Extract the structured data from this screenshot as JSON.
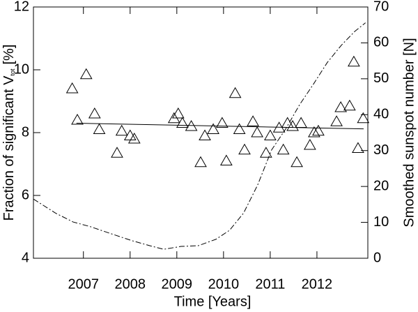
{
  "chart_data": {
    "type": "scatter",
    "xlabel": "Time [Years]",
    "ylabel": "Fraction of significant V",
    "ylabel_subscript": "tot",
    "ylabel_suffix": "[%]",
    "y2label": "Smoothed sunspot number [N]",
    "xlim": [
      2005.93,
      2013.09
    ],
    "xticks": [
      2007,
      2008,
      2009,
      2010,
      2011,
      2012
    ],
    "ylim": [
      4,
      12
    ],
    "yticks": [
      4,
      6,
      8,
      10,
      12
    ],
    "y2lim": [
      0,
      70
    ],
    "y2ticks": [
      0,
      10,
      20,
      30,
      40,
      50,
      60,
      70
    ],
    "series": [
      {
        "kind": "triangles",
        "color": "#000000",
        "x": [
          2006.76,
          2006.87,
          2007.06,
          2007.24,
          2007.34,
          2007.72,
          2007.82,
          2008.0,
          2008.09,
          2008.94,
          2009.03,
          2009.12,
          2009.31,
          2009.51,
          2009.6,
          2009.78,
          2009.97,
          2010.06,
          2010.25,
          2010.34,
          2010.45,
          2010.63,
          2010.72,
          2010.91,
          2011.0,
          2011.19,
          2011.28,
          2011.37,
          2011.48,
          2011.57,
          2011.66,
          2011.85,
          2011.94,
          2012.03,
          2012.42,
          2012.51,
          2012.7,
          2012.79,
          2012.88,
          2012.99
        ],
        "values": [
          9.4,
          8.4,
          9.85,
          8.6,
          8.1,
          7.35,
          8.05,
          7.9,
          7.8,
          8.45,
          8.6,
          8.3,
          8.2,
          7.05,
          7.9,
          8.1,
          8.3,
          7.1,
          9.25,
          8.1,
          7.45,
          8.35,
          8.0,
          7.35,
          7.9,
          8.15,
          7.45,
          8.3,
          8.2,
          7.05,
          8.3,
          7.6,
          8.0,
          8.05,
          8.35,
          8.8,
          8.85,
          10.25,
          7.5,
          8.45
        ]
      },
      {
        "kind": "fit",
        "color": "#000000",
        "x": [
          2006.85,
          2013.0
        ],
        "values": [
          8.3,
          8.12
        ]
      },
      {
        "kind": "sunspot",
        "color": "#000000",
        "axis": "y2",
        "x": [
          2005.93,
          2006.4,
          2006.78,
          2007.15,
          2007.6,
          2008.04,
          2008.42,
          2008.72,
          2009.09,
          2009.46,
          2009.84,
          2010.13,
          2010.43,
          2010.73,
          2011.03,
          2011.33,
          2011.63,
          2011.93,
          2012.22,
          2012.52,
          2012.81,
          2013.04
        ],
        "values": [
          16.5,
          12.6,
          10.1,
          8.8,
          6.8,
          4.9,
          3.5,
          2.5,
          3.3,
          3.5,
          5.3,
          7.8,
          12.6,
          20.4,
          30.2,
          36,
          42.8,
          48.6,
          54.5,
          59.3,
          63.2,
          65.6
        ]
      }
    ]
  }
}
